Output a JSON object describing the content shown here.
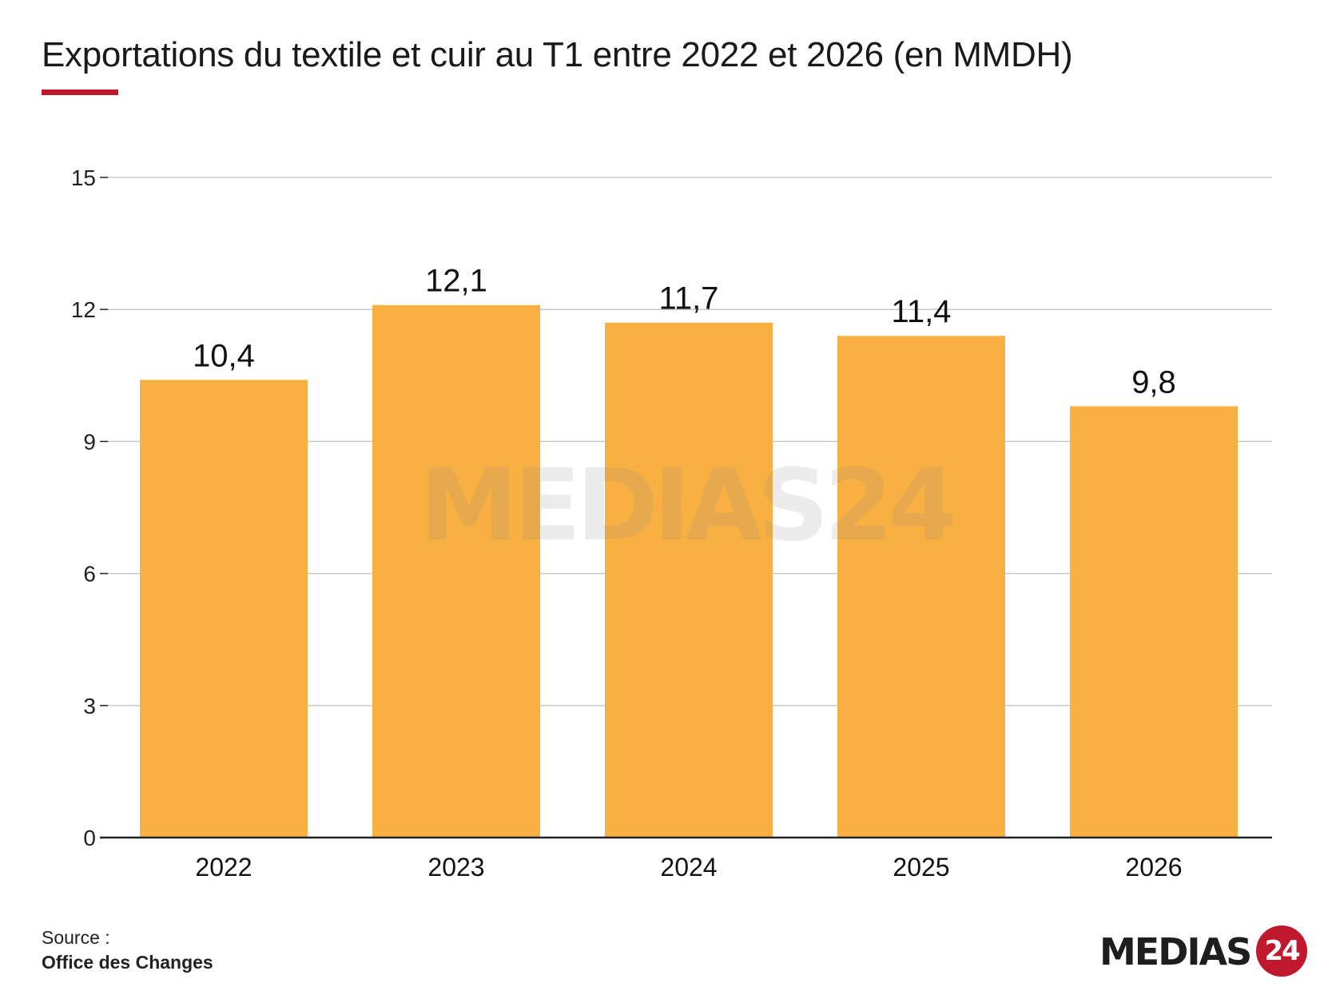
{
  "header": {
    "title": "Exportations du textile et cuir au T1 entre 2022 et 2026 (en MMDH)"
  },
  "colors": {
    "bar": "#f9b042",
    "accent": "#c0182d",
    "grid": "#c8c8c8",
    "axis": "#222222",
    "watermark": "#8a8a8a"
  },
  "chart_data": {
    "type": "bar",
    "title": "Exportations du textile et cuir au T1 entre 2022 et 2026 (en MMDH)",
    "xlabel": "",
    "ylabel": "",
    "categories": [
      "2022",
      "2023",
      "2024",
      "2025",
      "2026"
    ],
    "values": [
      10.4,
      12.1,
      11.7,
      11.4,
      9.8
    ],
    "value_labels": [
      "10,4",
      "12,1",
      "11,7",
      "11,4",
      "9,8"
    ],
    "ylim": [
      0,
      15
    ],
    "yticks": [
      0,
      3,
      6,
      9,
      12,
      15
    ],
    "grid": true,
    "legend": "none"
  },
  "watermark": {
    "text": "MEDIAS24"
  },
  "footer": {
    "source_label": "Source :",
    "source_name": "Office des Changes"
  },
  "logo": {
    "text": "MEDIAS",
    "badge": "24"
  }
}
